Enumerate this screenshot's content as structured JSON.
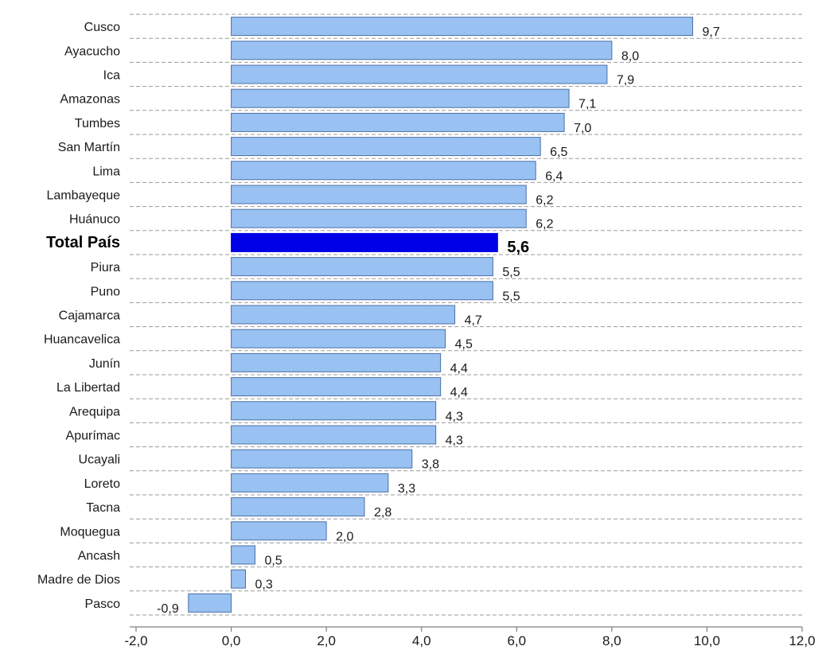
{
  "chart_data": {
    "type": "bar",
    "orientation": "horizontal",
    "categories": [
      "Cusco",
      "Ayacucho",
      "Ica",
      "Amazonas",
      "Tumbes",
      "San Martín",
      "Lima",
      "Lambayeque",
      "Huánuco",
      "Total País",
      "Piura",
      "Puno",
      "Cajamarca",
      "Huancavelica",
      "Junín",
      "La Libertad",
      "Arequipa",
      "Apurímac",
      "Ucayali",
      "Loreto",
      "Tacna",
      "Moquegua",
      "Ancash",
      "Madre de Dios",
      "Pasco"
    ],
    "values": [
      9.7,
      8.0,
      7.9,
      7.1,
      7.0,
      6.5,
      6.4,
      6.2,
      6.2,
      5.6,
      5.5,
      5.5,
      4.7,
      4.5,
      4.4,
      4.4,
      4.3,
      4.3,
      3.8,
      3.3,
      2.8,
      2.0,
      0.5,
      0.3,
      -0.9
    ],
    "value_labels": [
      "9,7",
      "8,0",
      "7,9",
      "7,1",
      "7,0",
      "6,5",
      "6,4",
      "6,2",
      "6,2",
      "5,6",
      "5,5",
      "5,5",
      "4,7",
      "4,5",
      "4,4",
      "4,4",
      "4,3",
      "4,3",
      "3,8",
      "3,3",
      "2,8",
      "2,0",
      "0,5",
      "0,3",
      "-0,9"
    ],
    "highlight": "Total País",
    "xlim": [
      -2.0,
      12.0
    ],
    "xticks": [
      -2.0,
      0.0,
      2.0,
      4.0,
      6.0,
      8.0,
      10.0,
      12.0
    ],
    "xtick_labels": [
      "-2,0",
      "0,0",
      "2,0",
      "4,0",
      "6,0",
      "8,0",
      "10,0",
      "12,0"
    ],
    "grid": "horizontal dashed",
    "colors": {
      "bar": "#99c2f2",
      "bar_border": "#4a6fa8",
      "highlight": "#0000e6",
      "grid": "#999999"
    },
    "title": "",
    "xlabel": "",
    "ylabel": ""
  }
}
